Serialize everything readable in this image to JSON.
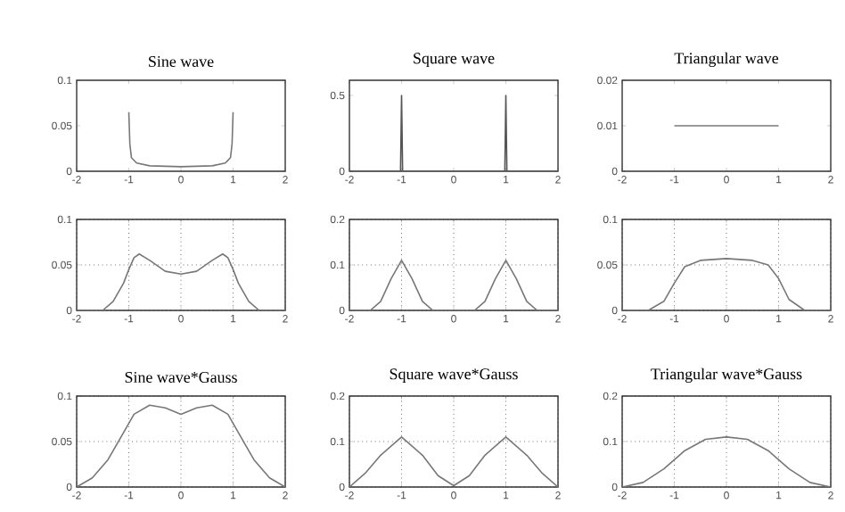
{
  "chart_data": [
    {
      "type": "line",
      "title": "Sine wave",
      "xlim": [
        -2,
        2
      ],
      "xticks": [
        -2,
        -1,
        0,
        1,
        2
      ],
      "ylim": [
        0,
        0.1
      ],
      "yticks": [
        0,
        0.05,
        0.1
      ],
      "grid": false,
      "series": [
        {
          "color": "#777777",
          "x": [
            -1,
            -0.98,
            -0.95,
            -0.85,
            -0.6,
            0,
            0.6,
            0.85,
            0.95,
            0.98,
            1
          ],
          "values": [
            0.065,
            0.03,
            0.015,
            0.009,
            0.006,
            0.005,
            0.006,
            0.009,
            0.015,
            0.03,
            0.065
          ]
        }
      ]
    },
    {
      "type": "line",
      "title": "Square wave",
      "xlim": [
        -2,
        2
      ],
      "xticks": [
        -2,
        -1,
        0,
        1,
        2
      ],
      "ylim": [
        0,
        0.6
      ],
      "yticks": [
        0,
        0.5
      ],
      "grid": false,
      "series": [
        {
          "color": "#555555",
          "x": [
            -2,
            -1.02,
            -1,
            -0.98,
            0.98,
            1,
            1.02,
            2
          ],
          "values": [
            0,
            0,
            0.5,
            0,
            0,
            0.5,
            0,
            0
          ]
        }
      ]
    },
    {
      "type": "line",
      "title": "Triangular wave",
      "xlim": [
        -2,
        2
      ],
      "xticks": [
        -2,
        -1,
        0,
        1,
        2
      ],
      "ylim": [
        0,
        0.02
      ],
      "yticks": [
        0,
        0.01,
        0.02
      ],
      "grid": false,
      "series": [
        {
          "color": "#777777",
          "x": [
            -1,
            1
          ],
          "values": [
            0.01,
            0.01
          ]
        }
      ]
    },
    {
      "type": "line",
      "xlim": [
        -2,
        2
      ],
      "xticks": [
        -2,
        -1,
        0,
        1,
        2
      ],
      "ylim": [
        0,
        0.1
      ],
      "yticks": [
        0,
        0.05,
        0.1
      ],
      "grid": true,
      "series": [
        {
          "color": "#777777",
          "x": [
            -2,
            -1.5,
            -1.3,
            -1.1,
            -1,
            -0.9,
            -0.8,
            -0.6,
            -0.3,
            0,
            0.3,
            0.6,
            0.8,
            0.9,
            1,
            1.1,
            1.3,
            1.5,
            2
          ],
          "values": [
            0,
            0,
            0.01,
            0.03,
            0.045,
            0.058,
            0.062,
            0.055,
            0.043,
            0.04,
            0.043,
            0.055,
            0.062,
            0.058,
            0.045,
            0.03,
            0.01,
            0,
            0
          ]
        }
      ]
    },
    {
      "type": "line",
      "xlim": [
        -2,
        2
      ],
      "xticks": [
        -2,
        -1,
        0,
        1,
        2
      ],
      "ylim": [
        0,
        0.2
      ],
      "yticks": [
        0,
        0.1,
        0.2
      ],
      "grid": true,
      "series": [
        {
          "color": "#777777",
          "x": [
            -2,
            -1.6,
            -1.4,
            -1.2,
            -1,
            -0.8,
            -0.6,
            -0.4,
            0,
            0.4,
            0.6,
            0.8,
            1,
            1.2,
            1.4,
            1.6,
            2
          ],
          "values": [
            0,
            0,
            0.02,
            0.07,
            0.11,
            0.07,
            0.02,
            0,
            0,
            0,
            0.02,
            0.07,
            0.11,
            0.07,
            0.02,
            0,
            0
          ]
        }
      ]
    },
    {
      "type": "line",
      "xlim": [
        -2,
        2
      ],
      "xticks": [
        -2,
        -1,
        0,
        1,
        2
      ],
      "ylim": [
        0,
        0.1
      ],
      "yticks": [
        0,
        0.05,
        0.1
      ],
      "grid": true,
      "series": [
        {
          "color": "#777777",
          "x": [
            -2,
            -1.5,
            -1.2,
            -1,
            -0.8,
            -0.5,
            0,
            0.5,
            0.8,
            1,
            1.2,
            1.5,
            2
          ],
          "values": [
            0,
            0,
            0.01,
            0.03,
            0.048,
            0.055,
            0.057,
            0.055,
            0.05,
            0.035,
            0.012,
            0,
            0
          ]
        }
      ]
    },
    {
      "type": "line",
      "title": "Sine wave*Gauss",
      "xlim": [
        -2,
        2
      ],
      "xticks": [
        -2,
        -1,
        0,
        1,
        2
      ],
      "ylim": [
        0,
        0.1
      ],
      "yticks": [
        0,
        0.05,
        0.1
      ],
      "grid": true,
      "series": [
        {
          "color": "#777777",
          "x": [
            -2,
            -1.7,
            -1.4,
            -1.1,
            -0.9,
            -0.6,
            -0.3,
            0,
            0.3,
            0.6,
            0.9,
            1.1,
            1.4,
            1.7,
            2
          ],
          "values": [
            0,
            0.01,
            0.03,
            0.06,
            0.08,
            0.09,
            0.087,
            0.08,
            0.087,
            0.09,
            0.08,
            0.06,
            0.03,
            0.01,
            0
          ]
        }
      ]
    },
    {
      "type": "line",
      "title": "Square wave*Gauss",
      "xlim": [
        -2,
        2
      ],
      "xticks": [
        -2,
        -1,
        0,
        1,
        2
      ],
      "ylim": [
        0,
        0.2
      ],
      "yticks": [
        0,
        0.1,
        0.2
      ],
      "grid": true,
      "series": [
        {
          "color": "#777777",
          "x": [
            -2,
            -1.7,
            -1.4,
            -1,
            -0.6,
            -0.3,
            0,
            0.3,
            0.6,
            1,
            1.4,
            1.7,
            2
          ],
          "values": [
            0,
            0.03,
            0.07,
            0.11,
            0.07,
            0.025,
            0.003,
            0.025,
            0.07,
            0.11,
            0.07,
            0.03,
            0
          ]
        }
      ]
    },
    {
      "type": "line",
      "title": "Triangular wave*Gauss",
      "xlim": [
        -2,
        2
      ],
      "xticks": [
        -2,
        -1,
        0,
        1,
        2
      ],
      "ylim": [
        0,
        0.2
      ],
      "yticks": [
        0,
        0.1,
        0.2
      ],
      "grid": true,
      "series": [
        {
          "color": "#777777",
          "x": [
            -2,
            -1.6,
            -1.2,
            -0.8,
            -0.4,
            0,
            0.4,
            0.8,
            1.2,
            1.6,
            2
          ],
          "values": [
            0,
            0.01,
            0.04,
            0.08,
            0.105,
            0.11,
            0.105,
            0.08,
            0.04,
            0.01,
            0
          ]
        }
      ]
    }
  ]
}
